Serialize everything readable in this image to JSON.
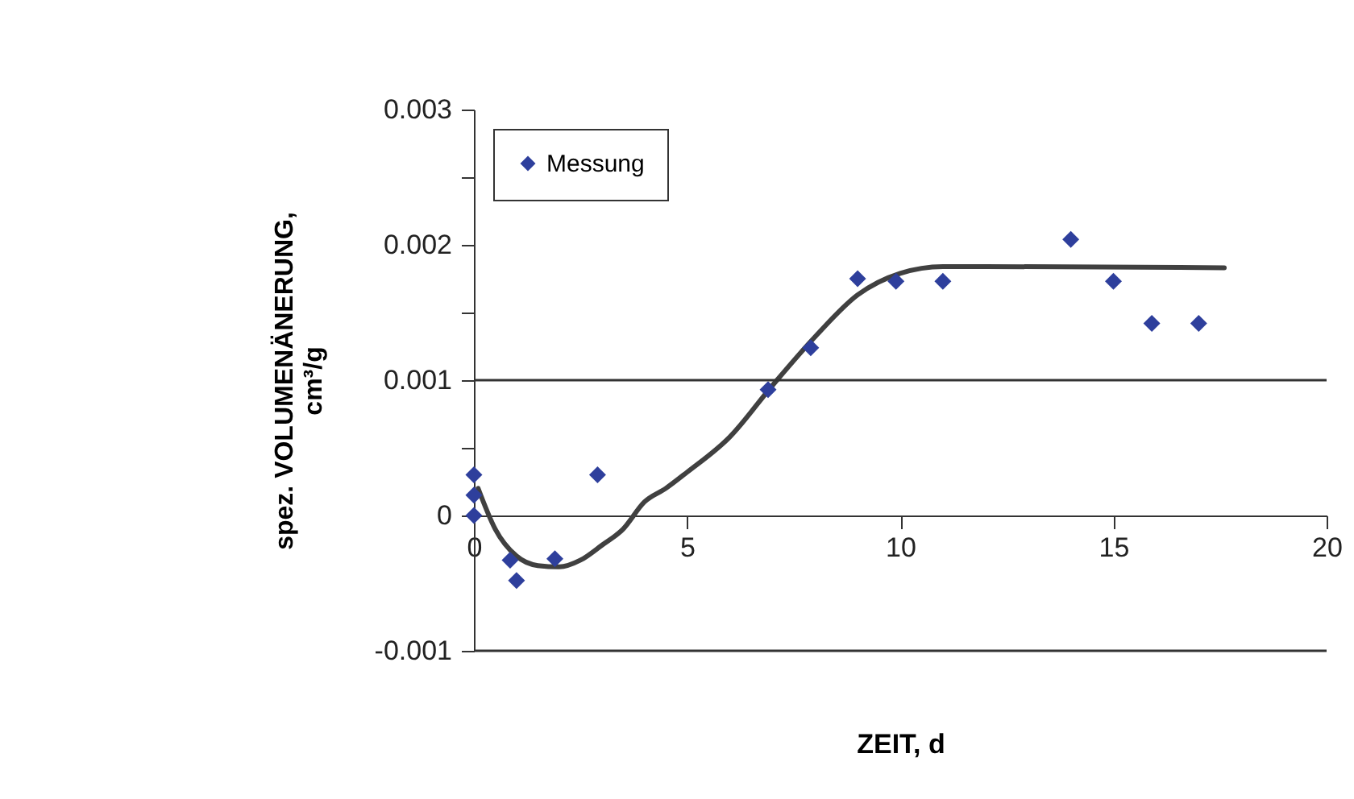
{
  "chart_data": {
    "type": "scatter",
    "xlabel": "ZEIT, d",
    "ylabel": "spez. VOLUMENÄNERUNG,\ncm³/g",
    "xlim": [
      0,
      20
    ],
    "xticks": [
      0,
      5,
      10,
      15,
      20
    ],
    "ylim": [
      -0.001,
      0.003
    ],
    "yticks": [
      {
        "value": -0.001,
        "label": "-0.001"
      },
      {
        "value": 0,
        "label": "0"
      },
      {
        "value": 0.0005,
        "label": null
      },
      {
        "value": 0.001,
        "label": "0.001"
      },
      {
        "value": 0.0015,
        "label": null
      },
      {
        "value": 0.002,
        "label": "0.002"
      },
      {
        "value": 0.0025,
        "label": null
      },
      {
        "value": 0.003,
        "label": "0.003"
      }
    ],
    "legend": "top left",
    "grid": false,
    "ref_lines": [
      {
        "axis": "y",
        "value": 0.001,
        "color": "#333333"
      }
    ],
    "series": [
      {
        "name": "Messung",
        "color": "#2e3f9c",
        "marker": "diamond",
        "x": [
          0,
          0,
          0,
          0.85,
          1,
          1.9,
          2.9,
          6.9,
          7.9,
          9,
          9.9,
          11,
          14,
          15,
          15.9,
          17
        ],
        "values": [
          0.0003,
          0.00015,
          0,
          -0.00033,
          -0.00048,
          -0.00032,
          0.0003,
          0.00093,
          0.00124,
          0.00175,
          0.00173,
          0.00173,
          0.00204,
          0.00173,
          0.00142,
          0.00142
        ]
      },
      {
        "type": "line",
        "color": "#404040",
        "x": [
          0.1,
          0.5,
          1,
          1.5,
          2,
          2.5,
          3,
          3.5,
          4,
          4.5,
          5,
          6,
          7,
          8,
          9,
          10,
          11,
          12,
          17.6
        ],
        "values": [
          0.0002,
          -0.0001,
          -0.0003,
          -0.00037,
          -0.00038,
          -0.00033,
          -0.00022,
          -0.0001,
          0.0001,
          0.0002,
          0.00032,
          0.00058,
          0.00096,
          0.00132,
          0.00163,
          0.00179,
          0.00184,
          0.00184,
          0.00183
        ]
      }
    ]
  }
}
